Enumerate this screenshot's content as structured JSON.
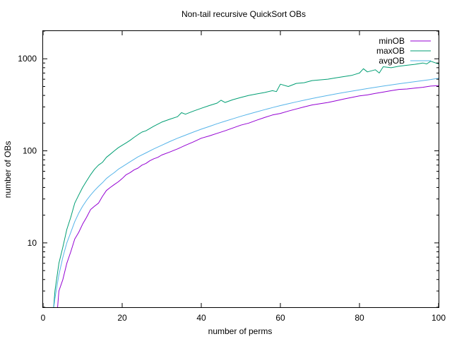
{
  "chart_data": {
    "type": "line",
    "title": "Non-tail recursive QuickSort OBs",
    "xlabel": "number of perms",
    "ylabel": "number of OBs",
    "xlim": [
      0,
      100
    ],
    "ylim": [
      2,
      2000
    ],
    "yscale": "log",
    "grid": false,
    "legend": "top-right",
    "x_ticks": [
      {
        "value": 0,
        "label": "0"
      },
      {
        "value": 20,
        "label": "20"
      },
      {
        "value": 40,
        "label": "40"
      },
      {
        "value": 60,
        "label": "60"
      },
      {
        "value": 80,
        "label": "80"
      },
      {
        "value": 100,
        "label": "100"
      }
    ],
    "y_ticks": [
      {
        "value": 10,
        "label": "10"
      },
      {
        "value": 100,
        "label": "100"
      },
      {
        "value": 1000,
        "label": "1000"
      }
    ],
    "series": [
      {
        "name": "minOB",
        "color": "#9400d3",
        "x": [
          4,
          5,
          6,
          7,
          8,
          9,
          10,
          11,
          12,
          13,
          14,
          15,
          16,
          17,
          18,
          19,
          20,
          21,
          22,
          23,
          24,
          25,
          26,
          27,
          28,
          29,
          30,
          32,
          34,
          36,
          38,
          40,
          42,
          44,
          46,
          48,
          50,
          52,
          54,
          56,
          58,
          60,
          62,
          64,
          66,
          68,
          70,
          72,
          74,
          76,
          78,
          80,
          82,
          84,
          86,
          88,
          90,
          92,
          94,
          96,
          98,
          100
        ],
        "values": [
          3,
          4,
          6,
          8,
          11,
          13,
          16,
          19,
          23,
          25,
          27,
          32,
          37,
          40,
          43,
          46,
          50,
          55,
          58,
          62,
          65,
          70,
          73,
          78,
          82,
          85,
          90,
          97,
          105,
          115,
          125,
          137,
          145,
          155,
          165,
          177,
          190,
          200,
          215,
          230,
          245,
          255,
          270,
          285,
          300,
          315,
          325,
          335,
          350,
          365,
          380,
          395,
          405,
          420,
          435,
          450,
          465,
          470,
          480,
          490,
          505,
          510
        ]
      },
      {
        "name": "maxOB",
        "color": "#009e73",
        "x": [
          3,
          4,
          5,
          6,
          7,
          8,
          9,
          10,
          11,
          12,
          13,
          14,
          15,
          16,
          17,
          18,
          19,
          20,
          21,
          22,
          23,
          24,
          25,
          26,
          27,
          28,
          29,
          30,
          32,
          34,
          35,
          36,
          38,
          40,
          42,
          44,
          45,
          46,
          48,
          50,
          52,
          54,
          56,
          58,
          59,
          60,
          62,
          64,
          66,
          68,
          70,
          72,
          74,
          76,
          78,
          80,
          81,
          82,
          84,
          85,
          86,
          88,
          90,
          92,
          94,
          96,
          97,
          98,
          100
        ],
        "values": [
          3,
          6,
          9,
          14,
          19,
          27,
          33,
          40,
          47,
          55,
          63,
          70,
          75,
          85,
          92,
          100,
          108,
          115,
          122,
          130,
          140,
          150,
          160,
          165,
          175,
          185,
          195,
          205,
          220,
          235,
          260,
          250,
          270,
          290,
          310,
          330,
          355,
          335,
          360,
          380,
          400,
          415,
          430,
          450,
          440,
          530,
          500,
          540,
          550,
          580,
          590,
          600,
          620,
          640,
          660,
          700,
          780,
          720,
          760,
          700,
          820,
          800,
          830,
          850,
          870,
          900,
          880,
          940,
          880
        ]
      },
      {
        "name": "avgOB",
        "color": "#56b4e9",
        "x": [
          3,
          4,
          5,
          6,
          7,
          8,
          9,
          10,
          11,
          12,
          13,
          14,
          15,
          16,
          17,
          18,
          19,
          20,
          22,
          24,
          26,
          28,
          30,
          32,
          34,
          36,
          38,
          40,
          42,
          44,
          46,
          48,
          50,
          52,
          54,
          56,
          58,
          60,
          62,
          64,
          66,
          68,
          70,
          72,
          74,
          76,
          78,
          80,
          82,
          84,
          86,
          88,
          90,
          92,
          94,
          96,
          98,
          100
        ],
        "values": [
          2.5,
          4.5,
          7,
          10,
          13,
          17,
          21,
          25,
          29,
          33,
          37,
          41,
          45,
          50,
          54,
          58,
          63,
          67,
          76,
          86,
          95,
          105,
          115,
          126,
          137,
          148,
          160,
          172,
          184,
          197,
          210,
          223,
          237,
          251,
          265,
          280,
          295,
          310,
          325,
          340,
          355,
          370,
          385,
          400,
          415,
          430,
          445,
          460,
          475,
          490,
          505,
          520,
          535,
          550,
          565,
          580,
          595,
          615
        ]
      }
    ]
  }
}
